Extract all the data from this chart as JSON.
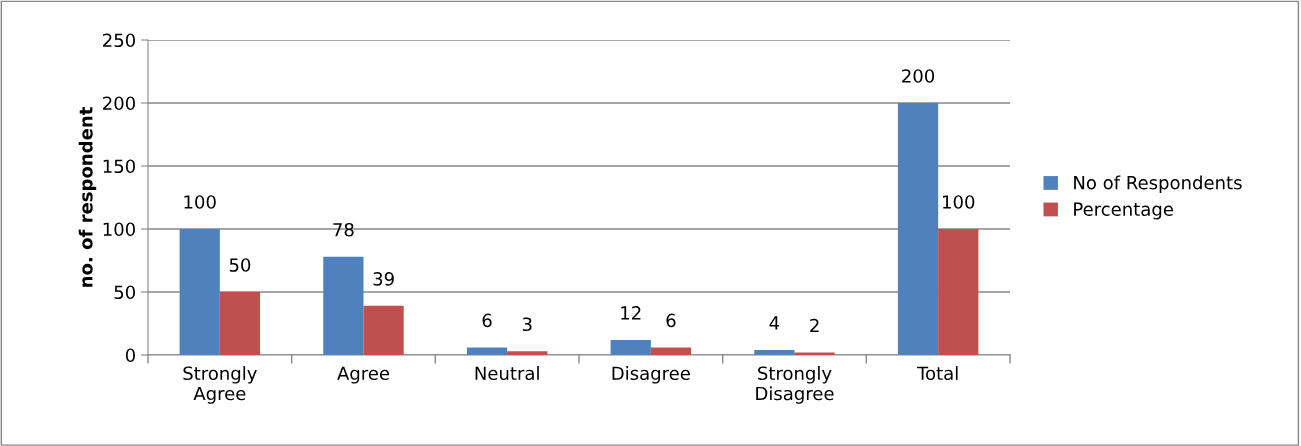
{
  "chart_data": {
    "type": "bar",
    "ylabel": "no. of respondent",
    "categories": [
      "Strongly\nAgree",
      "Agree",
      "Neutral",
      "Disagree",
      "Strongly\nDisagree",
      "Total"
    ],
    "series": [
      {
        "name": "No of Respondents",
        "color": "#4f81bd",
        "values": [
          100,
          78,
          6,
          12,
          4,
          200
        ]
      },
      {
        "name": "Percentage",
        "color": "#c0504d",
        "values": [
          50,
          39,
          3,
          6,
          2,
          100
        ]
      }
    ],
    "ylim": [
      0,
      250
    ],
    "yticks": [
      0,
      50,
      100,
      150,
      200,
      250
    ],
    "grid": "y",
    "legend": "right",
    "data_labels": true
  }
}
